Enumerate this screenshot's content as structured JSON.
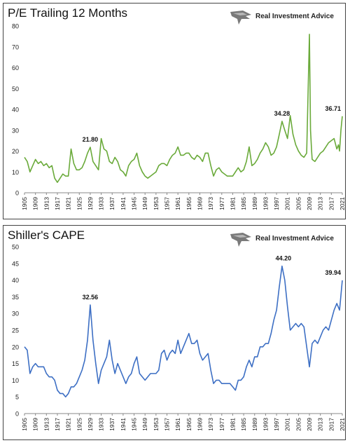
{
  "logo": {
    "text": "Real Investment Advice",
    "icon": "eagle-logo-icon"
  },
  "colors": {
    "pe": "#6aaa3a",
    "cape": "#3d6fc4"
  },
  "chart_data": [
    {
      "type": "line",
      "title": "P/E Trailing 12 Months",
      "xlim": [
        1905,
        2021
      ],
      "ylim": [
        0,
        80
      ],
      "yticks": [
        0,
        10,
        20,
        30,
        40,
        50,
        60,
        70,
        80
      ],
      "xticks": [
        1905,
        1909,
        1913,
        1917,
        1921,
        1925,
        1929,
        1933,
        1937,
        1941,
        1945,
        1949,
        1953,
        1957,
        1961,
        1965,
        1969,
        1973,
        1977,
        1981,
        1985,
        1989,
        1993,
        1997,
        2001,
        2005,
        2009,
        2013,
        2017,
        2021
      ],
      "grid": false,
      "series": [
        {
          "color": "#6aaa3a",
          "x": [
            1905,
            1906,
            1907,
            1908,
            1909,
            1910,
            1911,
            1912,
            1913,
            1914,
            1915,
            1916,
            1917,
            1918,
            1919,
            1920,
            1921,
            1922,
            1923,
            1924,
            1925,
            1926,
            1927,
            1928,
            1929,
            1930,
            1931,
            1932,
            1933,
            1934,
            1935,
            1936,
            1937,
            1938,
            1939,
            1940,
            1941,
            1942,
            1943,
            1944,
            1945,
            1946,
            1947,
            1948,
            1949,
            1950,
            1951,
            1952,
            1953,
            1954,
            1955,
            1956,
            1957,
            1958,
            1959,
            1960,
            1961,
            1962,
            1963,
            1964,
            1965,
            1966,
            1967,
            1968,
            1969,
            1970,
            1971,
            1972,
            1973,
            1974,
            1975,
            1976,
            1977,
            1978,
            1979,
            1980,
            1981,
            1982,
            1983,
            1984,
            1985,
            1986,
            1987,
            1988,
            1989,
            1990,
            1991,
            1992,
            1993,
            1994,
            1995,
            1996,
            1997,
            1998,
            1999,
            2000,
            2001,
            2002,
            2003,
            2004,
            2005,
            2006,
            2007,
            2008,
            2009,
            2009.4,
            2009.8,
            2010,
            2011,
            2012,
            2013,
            2014,
            2015,
            2016,
            2017,
            2018,
            2019,
            2019.6,
            2020,
            2020.5,
            2021
          ],
          "y": [
            17,
            15,
            10,
            13,
            16,
            14,
            15,
            13,
            14,
            12,
            13,
            7,
            5,
            7,
            9,
            8,
            8,
            21,
            14,
            11,
            11,
            12,
            15,
            19,
            21.8,
            15,
            13,
            11,
            26,
            21,
            20,
            15,
            14,
            17,
            15,
            11,
            10,
            8,
            13,
            15,
            16,
            19,
            13,
            10,
            8,
            7,
            8,
            9,
            10,
            13,
            14,
            14,
            13,
            16,
            18,
            19,
            22,
            18,
            18,
            19,
            19,
            17,
            16,
            18,
            17,
            15,
            19,
            19,
            13,
            8,
            11,
            12,
            10,
            9,
            8,
            8,
            8,
            10,
            12,
            10,
            11,
            15,
            22,
            13,
            14,
            16,
            19,
            21,
            24,
            22,
            18,
            19,
            22,
            28,
            34.28,
            30,
            26,
            37,
            28,
            23,
            20,
            18,
            17,
            19,
            76,
            30,
            20,
            16,
            15,
            17,
            19,
            20,
            22,
            24,
            25,
            26,
            21,
            23,
            20,
            30,
            36.71
          ]
        }
      ],
      "annotations": [
        {
          "x": 1929,
          "y": 21.8,
          "text": "21.80"
        },
        {
          "x": 1999,
          "y": 34.28,
          "text": "34.28"
        },
        {
          "x": 2021,
          "y": 36.71,
          "text": "36.71"
        }
      ]
    },
    {
      "type": "line",
      "title": "Shiller's CAPE",
      "xlim": [
        1905,
        2021
      ],
      "ylim": [
        0,
        50
      ],
      "yticks": [
        0,
        5,
        10,
        15,
        20,
        25,
        30,
        35,
        40,
        45,
        50
      ],
      "xticks": [
        1905,
        1909,
        1913,
        1917,
        1921,
        1925,
        1929,
        1933,
        1937,
        1941,
        1945,
        1949,
        1953,
        1957,
        1961,
        1965,
        1969,
        1973,
        1977,
        1981,
        1985,
        1989,
        1993,
        1997,
        2001,
        2005,
        2009,
        2013,
        2017,
        2021
      ],
      "grid": false,
      "series": [
        {
          "color": "#3d6fc4",
          "x": [
            1905,
            1906,
            1907,
            1908,
            1909,
            1910,
            1911,
            1912,
            1913,
            1914,
            1915,
            1916,
            1917,
            1918,
            1919,
            1920,
            1921,
            1922,
            1923,
            1924,
            1925,
            1926,
            1927,
            1928,
            1929,
            1930,
            1931,
            1932,
            1933,
            1934,
            1935,
            1936,
            1937,
            1938,
            1939,
            1940,
            1941,
            1942,
            1943,
            1944,
            1945,
            1946,
            1947,
            1948,
            1949,
            1950,
            1951,
            1952,
            1953,
            1954,
            1955,
            1956,
            1957,
            1958,
            1959,
            1960,
            1961,
            1962,
            1963,
            1964,
            1965,
            1966,
            1967,
            1968,
            1969,
            1970,
            1971,
            1972,
            1973,
            1974,
            1975,
            1976,
            1977,
            1978,
            1979,
            1980,
            1981,
            1982,
            1983,
            1984,
            1985,
            1986,
            1987,
            1988,
            1989,
            1990,
            1991,
            1992,
            1993,
            1994,
            1995,
            1996,
            1997,
            1998,
            1999,
            2000,
            2001,
            2002,
            2003,
            2004,
            2005,
            2006,
            2007,
            2008,
            2009,
            2010,
            2011,
            2012,
            2013,
            2014,
            2015,
            2016,
            2017,
            2018,
            2019,
            2020,
            2021
          ],
          "y": [
            20,
            19,
            12,
            14,
            15,
            14,
            14,
            14,
            12,
            11,
            11,
            10,
            7,
            6,
            6,
            5,
            6,
            8,
            8,
            9,
            11,
            13,
            16,
            22,
            32.56,
            22,
            15,
            9,
            13,
            15,
            17,
            22,
            16,
            12,
            15,
            13,
            11,
            9,
            11,
            12,
            15,
            17,
            12,
            11,
            10,
            11,
            12,
            12,
            12,
            13,
            18,
            19,
            16,
            18,
            19,
            18,
            22,
            18,
            20,
            22,
            24,
            21,
            21,
            22,
            18,
            16,
            17,
            18,
            13,
            9,
            10,
            10,
            9,
            9,
            9,
            9,
            8,
            7,
            10,
            10,
            11,
            14,
            16,
            14,
            17,
            17,
            20,
            20,
            21,
            21,
            24,
            28,
            31,
            38,
            44.2,
            40,
            32,
            25,
            26,
            27,
            26,
            27,
            26,
            20,
            14,
            21,
            22,
            21,
            23,
            25,
            26,
            25,
            28,
            31,
            33,
            31,
            39.94
          ]
        }
      ],
      "annotations": [
        {
          "x": 1929,
          "y": 32.56,
          "text": "32.56"
        },
        {
          "x": 1999.5,
          "y": 44.2,
          "text": "44.20"
        },
        {
          "x": 2021,
          "y": 39.94,
          "text": "39.94"
        }
      ]
    }
  ]
}
